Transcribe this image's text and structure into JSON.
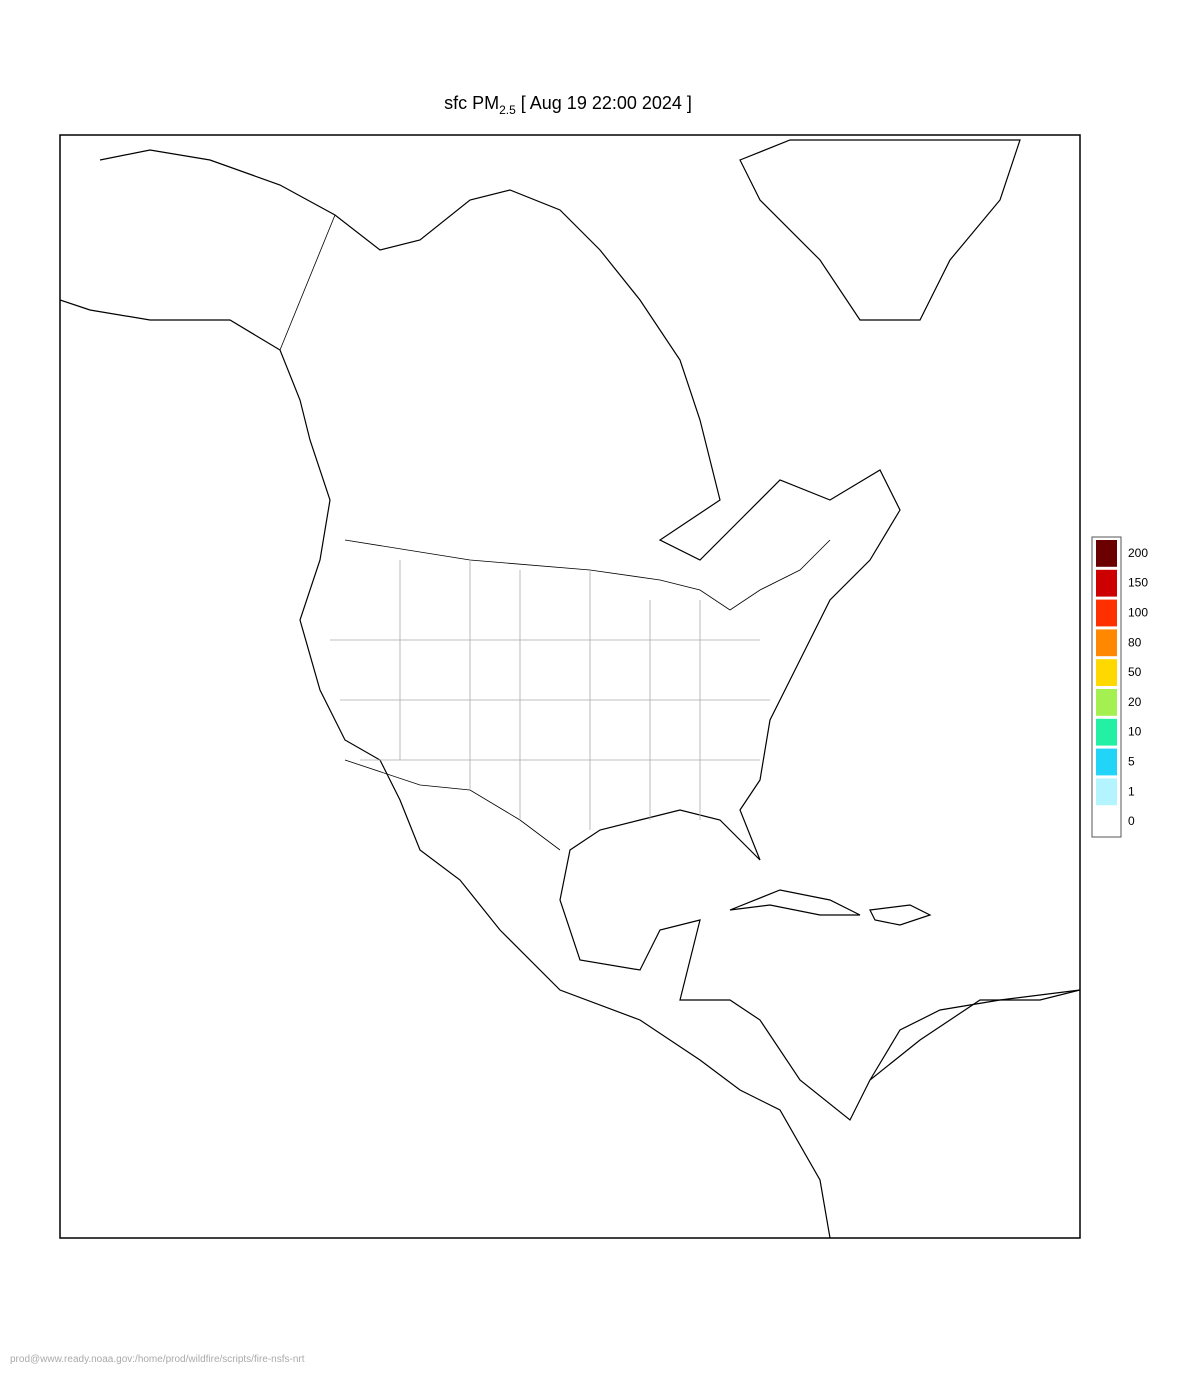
{
  "title": {
    "main": "sfc PM",
    "subscript": "2.5",
    "rest": "[ Aug 19 22:00 2024 ]"
  },
  "legend": {
    "levels": [
      0,
      1,
      5,
      10,
      20,
      50,
      80,
      100,
      150,
      200
    ],
    "colors": [
      "#ffffff",
      "#b4f4ff",
      "#22d4f8",
      "#24f0a4",
      "#a4f050",
      "#ffd800",
      "#ff8800",
      "#ff3000",
      "#cc0000",
      "#6a0000"
    ]
  },
  "footer": "prod@www.ready.noaa.gov:/home/prod/wildfire/scripts/fire-nsfs-nrt"
}
